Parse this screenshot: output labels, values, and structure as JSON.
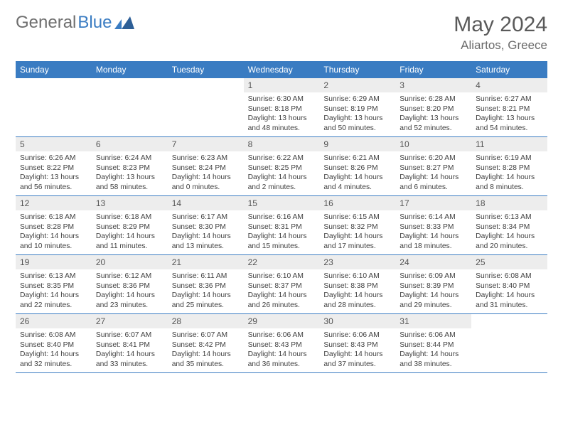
{
  "brand": {
    "part1": "General",
    "part2": "Blue"
  },
  "title": "May 2024",
  "location": "Aliartos, Greece",
  "colors": {
    "header_bg": "#3a7cc2",
    "header_text": "#ffffff",
    "daynum_bg": "#ededed",
    "daynum_text": "#555555",
    "body_text": "#404040",
    "brand_gray": "#6e6e6e",
    "brand_blue": "#3a7cc2",
    "border": "#3a7cc2"
  },
  "days_of_week": [
    "Sunday",
    "Monday",
    "Tuesday",
    "Wednesday",
    "Thursday",
    "Friday",
    "Saturday"
  ],
  "weeks": [
    [
      {
        "n": "",
        "sr": "",
        "ss": "",
        "dl": ""
      },
      {
        "n": "",
        "sr": "",
        "ss": "",
        "dl": ""
      },
      {
        "n": "",
        "sr": "",
        "ss": "",
        "dl": ""
      },
      {
        "n": "1",
        "sr": "Sunrise: 6:30 AM",
        "ss": "Sunset: 8:18 PM",
        "dl": "Daylight: 13 hours and 48 minutes."
      },
      {
        "n": "2",
        "sr": "Sunrise: 6:29 AM",
        "ss": "Sunset: 8:19 PM",
        "dl": "Daylight: 13 hours and 50 minutes."
      },
      {
        "n": "3",
        "sr": "Sunrise: 6:28 AM",
        "ss": "Sunset: 8:20 PM",
        "dl": "Daylight: 13 hours and 52 minutes."
      },
      {
        "n": "4",
        "sr": "Sunrise: 6:27 AM",
        "ss": "Sunset: 8:21 PM",
        "dl": "Daylight: 13 hours and 54 minutes."
      }
    ],
    [
      {
        "n": "5",
        "sr": "Sunrise: 6:26 AM",
        "ss": "Sunset: 8:22 PM",
        "dl": "Daylight: 13 hours and 56 minutes."
      },
      {
        "n": "6",
        "sr": "Sunrise: 6:24 AM",
        "ss": "Sunset: 8:23 PM",
        "dl": "Daylight: 13 hours and 58 minutes."
      },
      {
        "n": "7",
        "sr": "Sunrise: 6:23 AM",
        "ss": "Sunset: 8:24 PM",
        "dl": "Daylight: 14 hours and 0 minutes."
      },
      {
        "n": "8",
        "sr": "Sunrise: 6:22 AM",
        "ss": "Sunset: 8:25 PM",
        "dl": "Daylight: 14 hours and 2 minutes."
      },
      {
        "n": "9",
        "sr": "Sunrise: 6:21 AM",
        "ss": "Sunset: 8:26 PM",
        "dl": "Daylight: 14 hours and 4 minutes."
      },
      {
        "n": "10",
        "sr": "Sunrise: 6:20 AM",
        "ss": "Sunset: 8:27 PM",
        "dl": "Daylight: 14 hours and 6 minutes."
      },
      {
        "n": "11",
        "sr": "Sunrise: 6:19 AM",
        "ss": "Sunset: 8:28 PM",
        "dl": "Daylight: 14 hours and 8 minutes."
      }
    ],
    [
      {
        "n": "12",
        "sr": "Sunrise: 6:18 AM",
        "ss": "Sunset: 8:28 PM",
        "dl": "Daylight: 14 hours and 10 minutes."
      },
      {
        "n": "13",
        "sr": "Sunrise: 6:18 AM",
        "ss": "Sunset: 8:29 PM",
        "dl": "Daylight: 14 hours and 11 minutes."
      },
      {
        "n": "14",
        "sr": "Sunrise: 6:17 AM",
        "ss": "Sunset: 8:30 PM",
        "dl": "Daylight: 14 hours and 13 minutes."
      },
      {
        "n": "15",
        "sr": "Sunrise: 6:16 AM",
        "ss": "Sunset: 8:31 PM",
        "dl": "Daylight: 14 hours and 15 minutes."
      },
      {
        "n": "16",
        "sr": "Sunrise: 6:15 AM",
        "ss": "Sunset: 8:32 PM",
        "dl": "Daylight: 14 hours and 17 minutes."
      },
      {
        "n": "17",
        "sr": "Sunrise: 6:14 AM",
        "ss": "Sunset: 8:33 PM",
        "dl": "Daylight: 14 hours and 18 minutes."
      },
      {
        "n": "18",
        "sr": "Sunrise: 6:13 AM",
        "ss": "Sunset: 8:34 PM",
        "dl": "Daylight: 14 hours and 20 minutes."
      }
    ],
    [
      {
        "n": "19",
        "sr": "Sunrise: 6:13 AM",
        "ss": "Sunset: 8:35 PM",
        "dl": "Daylight: 14 hours and 22 minutes."
      },
      {
        "n": "20",
        "sr": "Sunrise: 6:12 AM",
        "ss": "Sunset: 8:36 PM",
        "dl": "Daylight: 14 hours and 23 minutes."
      },
      {
        "n": "21",
        "sr": "Sunrise: 6:11 AM",
        "ss": "Sunset: 8:36 PM",
        "dl": "Daylight: 14 hours and 25 minutes."
      },
      {
        "n": "22",
        "sr": "Sunrise: 6:10 AM",
        "ss": "Sunset: 8:37 PM",
        "dl": "Daylight: 14 hours and 26 minutes."
      },
      {
        "n": "23",
        "sr": "Sunrise: 6:10 AM",
        "ss": "Sunset: 8:38 PM",
        "dl": "Daylight: 14 hours and 28 minutes."
      },
      {
        "n": "24",
        "sr": "Sunrise: 6:09 AM",
        "ss": "Sunset: 8:39 PM",
        "dl": "Daylight: 14 hours and 29 minutes."
      },
      {
        "n": "25",
        "sr": "Sunrise: 6:08 AM",
        "ss": "Sunset: 8:40 PM",
        "dl": "Daylight: 14 hours and 31 minutes."
      }
    ],
    [
      {
        "n": "26",
        "sr": "Sunrise: 6:08 AM",
        "ss": "Sunset: 8:40 PM",
        "dl": "Daylight: 14 hours and 32 minutes."
      },
      {
        "n": "27",
        "sr": "Sunrise: 6:07 AM",
        "ss": "Sunset: 8:41 PM",
        "dl": "Daylight: 14 hours and 33 minutes."
      },
      {
        "n": "28",
        "sr": "Sunrise: 6:07 AM",
        "ss": "Sunset: 8:42 PM",
        "dl": "Daylight: 14 hours and 35 minutes."
      },
      {
        "n": "29",
        "sr": "Sunrise: 6:06 AM",
        "ss": "Sunset: 8:43 PM",
        "dl": "Daylight: 14 hours and 36 minutes."
      },
      {
        "n": "30",
        "sr": "Sunrise: 6:06 AM",
        "ss": "Sunset: 8:43 PM",
        "dl": "Daylight: 14 hours and 37 minutes."
      },
      {
        "n": "31",
        "sr": "Sunrise: 6:06 AM",
        "ss": "Sunset: 8:44 PM",
        "dl": "Daylight: 14 hours and 38 minutes."
      },
      {
        "n": "",
        "sr": "",
        "ss": "",
        "dl": ""
      }
    ]
  ]
}
